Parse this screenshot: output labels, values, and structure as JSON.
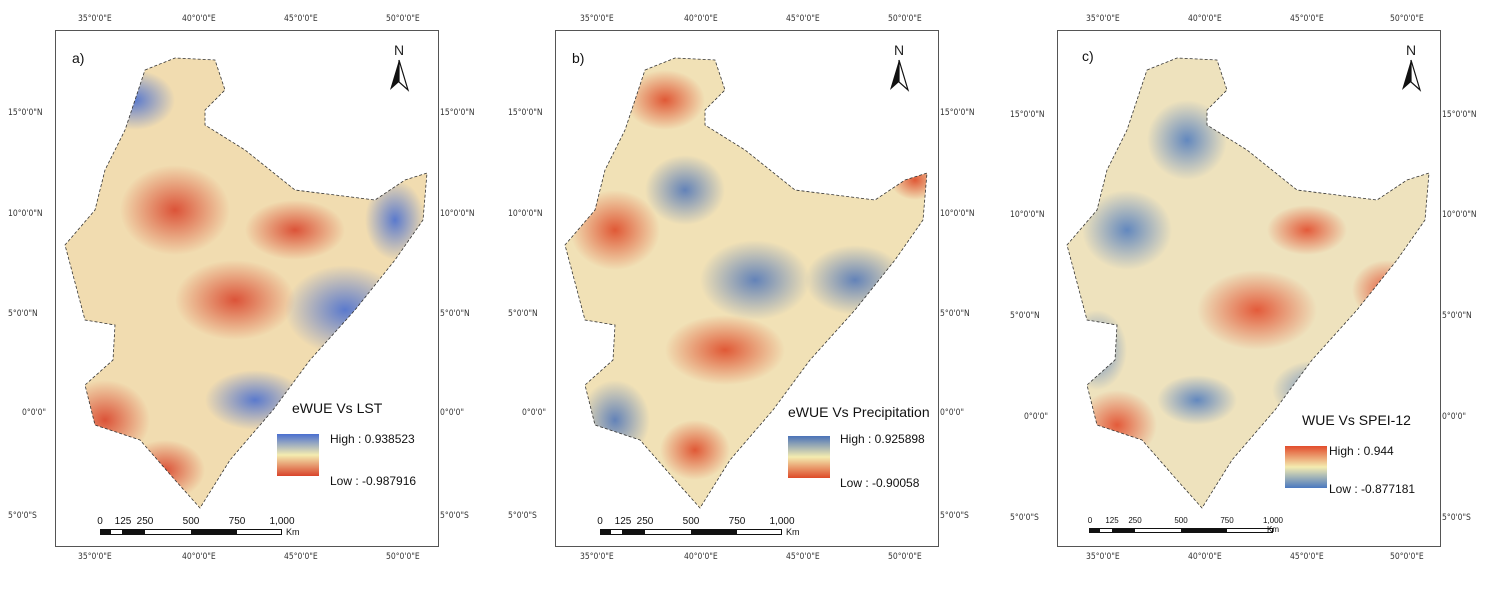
{
  "panels": [
    {
      "label": "a)",
      "title": "eWUE Vs LST",
      "legend_high": "High : 0.938523",
      "legend_low": "Low : -0.987916",
      "legend_top_color": "#4a6fd0",
      "legend_mid_color": "#f4ecb0",
      "legend_bottom_color": "#d9442b",
      "lon_labels": [
        "35°0'0\"E",
        "40°0'0\"E",
        "45°0'0\"E",
        "50°0'0\"E"
      ],
      "lon_labels_bottom": [
        "35°0'0\"E",
        "40°0'0\"E",
        "45°0'0\"E",
        "50°0'0\"E"
      ],
      "lat_labels": [
        "15°0'0\"N",
        "10°0'0\"N",
        "5°0'0\"N",
        "0°0'0\"",
        "5°0'0\"S"
      ],
      "lat_labels_right": [
        "15°0'0\"N",
        "10°0'0\"N",
        "5°0'0\"N",
        "0°0'0\"",
        "5°0'0\"S"
      ],
      "north": "N",
      "scale_labels": [
        "0",
        "125",
        "250",
        "500",
        "750",
        "1,000"
      ],
      "scale_unit": "Km"
    },
    {
      "label": "b)",
      "title": "eWUE Vs Precipitation",
      "legend_high": "High : 0.925898",
      "legend_low": "Low : -0.90058",
      "legend_top_color": "#4a72b8",
      "legend_mid_color": "#f4ecb0",
      "legend_bottom_color": "#de4a28",
      "lon_labels": [
        "35°0'0\"E",
        "40°0'0\"E",
        "45°0'0\"E",
        "50°0'0\"E"
      ],
      "lon_labels_bottom": [
        "35°0'0\"E",
        "40°0'0\"E",
        "45°0'0\"E",
        "50°0'0\"E"
      ],
      "lat_labels": [
        "15°0'0\"N",
        "10°0'0\"N",
        "5°0'0\"N",
        "0°0'0\"",
        "5°0'0\"S"
      ],
      "lat_labels_right": [
        "15°0'0\"N",
        "10°0'0\"N",
        "5°0'0\"N",
        "0°0'0\"",
        "5°0'0\"S"
      ],
      "north": "N",
      "scale_labels": [
        "0",
        "125",
        "250",
        "500",
        "750",
        "1,000"
      ],
      "scale_unit": "Km"
    },
    {
      "label": "c)",
      "title": "WUE Vs SPEI-12",
      "legend_high": "High : 0.944",
      "legend_low": "Low : -0.877181",
      "legend_top_color": "#e24c2c",
      "legend_mid_color": "#f4ecb0",
      "legend_bottom_color": "#4a78bf",
      "lon_labels": [
        "35°0'0\"E",
        "40°0'0\"E",
        "45°0'0\"E",
        "50°0'0\"E"
      ],
      "lon_labels_bottom": [
        "35°0'0\"E",
        "40°0'0\"E",
        "45°0'0\"E",
        "50°0'0\"E"
      ],
      "lat_labels": [
        "15°0'0\"N",
        "10°0'0\"N",
        "5°0'0\"N",
        "0°0'0\"",
        "5°0'0\"S"
      ],
      "lat_labels_right": [
        "15°0'0\"N",
        "10°0'0\"N",
        "5°0'0\"N",
        "0°0'0\"",
        "5°0'0\"S"
      ],
      "north": "N",
      "scale_labels": [
        "0",
        "125",
        "250",
        "500",
        "750",
        "1,000"
      ],
      "scale_unit": "Km"
    }
  ]
}
